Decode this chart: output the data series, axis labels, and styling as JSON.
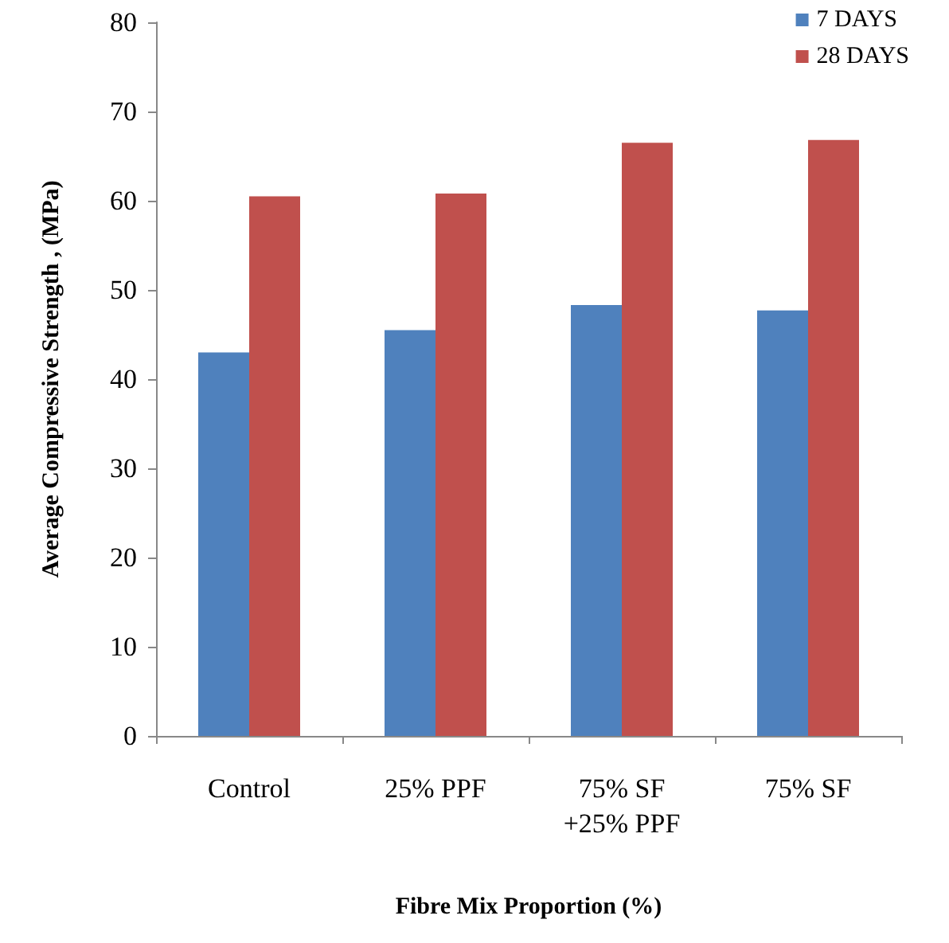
{
  "chart_data": {
    "type": "bar",
    "xlabel": "Fibre Mix Proportion (%)",
    "ylabel": "Average Compressive Strength , (MPa)",
    "categories": [
      "Control",
      "25% PPF",
      "75% SF\n+25% PPF",
      "75% SF"
    ],
    "series": [
      {
        "name": "7 DAYS",
        "color": "#4f81bd",
        "values": [
          43.0,
          45.5,
          48.3,
          47.7
        ]
      },
      {
        "name": "28 DAYS",
        "color": "#c0504d",
        "values": [
          60.5,
          60.8,
          66.5,
          66.8
        ]
      }
    ],
    "ylim": [
      0,
      80
    ],
    "yticks": [
      0,
      10,
      20,
      30,
      40,
      50,
      60,
      70,
      80
    ],
    "grid": false,
    "legend": "top right"
  }
}
